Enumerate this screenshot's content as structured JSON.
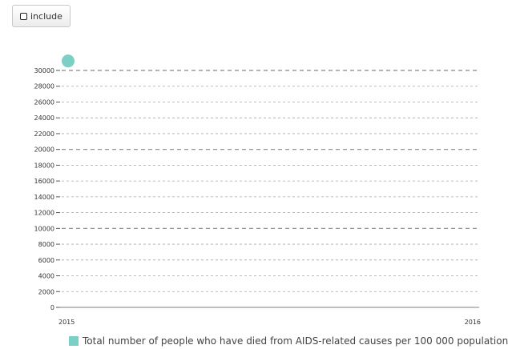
{
  "controls": {
    "include_label": "include"
  },
  "chart_data": {
    "type": "scatter",
    "title": "",
    "xlabel": "",
    "ylabel": "",
    "x_ticks": [
      "2015",
      "2016"
    ],
    "xlim": [
      2015,
      2016
    ],
    "ylim": [
      0,
      30000
    ],
    "y_ticks": [
      0,
      2000,
      4000,
      6000,
      8000,
      10000,
      12000,
      14000,
      16000,
      18000,
      20000,
      22000,
      24000,
      26000,
      28000,
      30000
    ],
    "grid": true,
    "legend_position": "bottom",
    "series": [
      {
        "name": "Total number of people who have died from AIDS-related causes per 100 000 population",
        "color": "#7ccfc4",
        "points": [
          {
            "x": 2015,
            "y": 31200
          }
        ]
      }
    ]
  }
}
